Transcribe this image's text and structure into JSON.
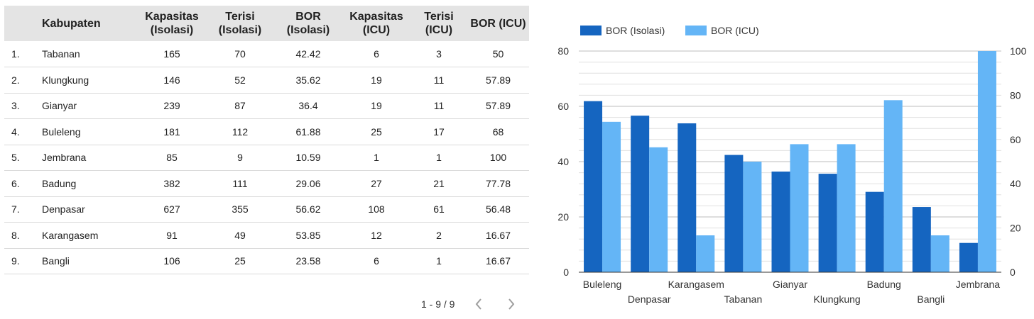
{
  "table": {
    "headers": {
      "name": "Kabupaten",
      "cap_iso": "Kapasitas (Isolasi)",
      "fill_iso": "Terisi (Isolasi)",
      "bor_iso": "BOR (Isolasi)",
      "cap_icu": "Kapasitas (ICU)",
      "fill_icu": "Terisi (ICU)",
      "bor_icu": "BOR (ICU)"
    },
    "rows": [
      {
        "idx": "1.",
        "name": "Tabanan",
        "cap_iso": "165",
        "fill_iso": "70",
        "bor_iso": "42.42",
        "cap_icu": "6",
        "fill_icu": "3",
        "bor_icu": "50"
      },
      {
        "idx": "2.",
        "name": "Klungkung",
        "cap_iso": "146",
        "fill_iso": "52",
        "bor_iso": "35.62",
        "cap_icu": "19",
        "fill_icu": "11",
        "bor_icu": "57.89"
      },
      {
        "idx": "3.",
        "name": "Gianyar",
        "cap_iso": "239",
        "fill_iso": "87",
        "bor_iso": "36.4",
        "cap_icu": "19",
        "fill_icu": "11",
        "bor_icu": "57.89"
      },
      {
        "idx": "4.",
        "name": "Buleleng",
        "cap_iso": "181",
        "fill_iso": "112",
        "bor_iso": "61.88",
        "cap_icu": "25",
        "fill_icu": "17",
        "bor_icu": "68"
      },
      {
        "idx": "5.",
        "name": "Jembrana",
        "cap_iso": "85",
        "fill_iso": "9",
        "bor_iso": "10.59",
        "cap_icu": "1",
        "fill_icu": "1",
        "bor_icu": "100"
      },
      {
        "idx": "6.",
        "name": "Badung",
        "cap_iso": "382",
        "fill_iso": "111",
        "bor_iso": "29.06",
        "cap_icu": "27",
        "fill_icu": "21",
        "bor_icu": "77.78"
      },
      {
        "idx": "7.",
        "name": "Denpasar",
        "cap_iso": "627",
        "fill_iso": "355",
        "bor_iso": "56.62",
        "cap_icu": "108",
        "fill_icu": "61",
        "bor_icu": "56.48"
      },
      {
        "idx": "8.",
        "name": "Karangasem",
        "cap_iso": "91",
        "fill_iso": "49",
        "bor_iso": "53.85",
        "cap_icu": "12",
        "fill_icu": "2",
        "bor_icu": "16.67"
      },
      {
        "idx": "9.",
        "name": "Bangli",
        "cap_iso": "106",
        "fill_iso": "25",
        "bor_iso": "23.58",
        "cap_icu": "6",
        "fill_icu": "1",
        "bor_icu": "16.67"
      }
    ]
  },
  "pagination": {
    "label": "1 - 9 / 9",
    "prev_icon": "chevron-left-icon",
    "next_icon": "chevron-right-icon"
  },
  "chart_data": {
    "type": "bar",
    "categories": [
      "Buleleng",
      "Denpasar",
      "Karangasem",
      "Tabanan",
      "Gianyar",
      "Klungkung",
      "Badung",
      "Bangli",
      "Jembrana"
    ],
    "series": [
      {
        "name": "BOR (Isolasi)",
        "values": [
          61.88,
          56.62,
          53.85,
          42.42,
          36.4,
          35.62,
          29.06,
          23.58,
          10.59
        ],
        "color": "#1565c0",
        "axis": "left"
      },
      {
        "name": "BOR (ICU)",
        "values": [
          68,
          56.48,
          16.67,
          50,
          57.89,
          57.89,
          77.78,
          16.67,
          100
        ],
        "color": "#64b5f6",
        "axis": "right"
      }
    ],
    "left_axis": {
      "ylim": [
        0,
        80
      ],
      "ticks": [
        0,
        20,
        40,
        60,
        80
      ]
    },
    "right_axis": {
      "ylim": [
        0,
        100
      ],
      "ticks": [
        0,
        20,
        40,
        60,
        80,
        100
      ]
    },
    "legend_position": "top-left",
    "grid": true
  }
}
